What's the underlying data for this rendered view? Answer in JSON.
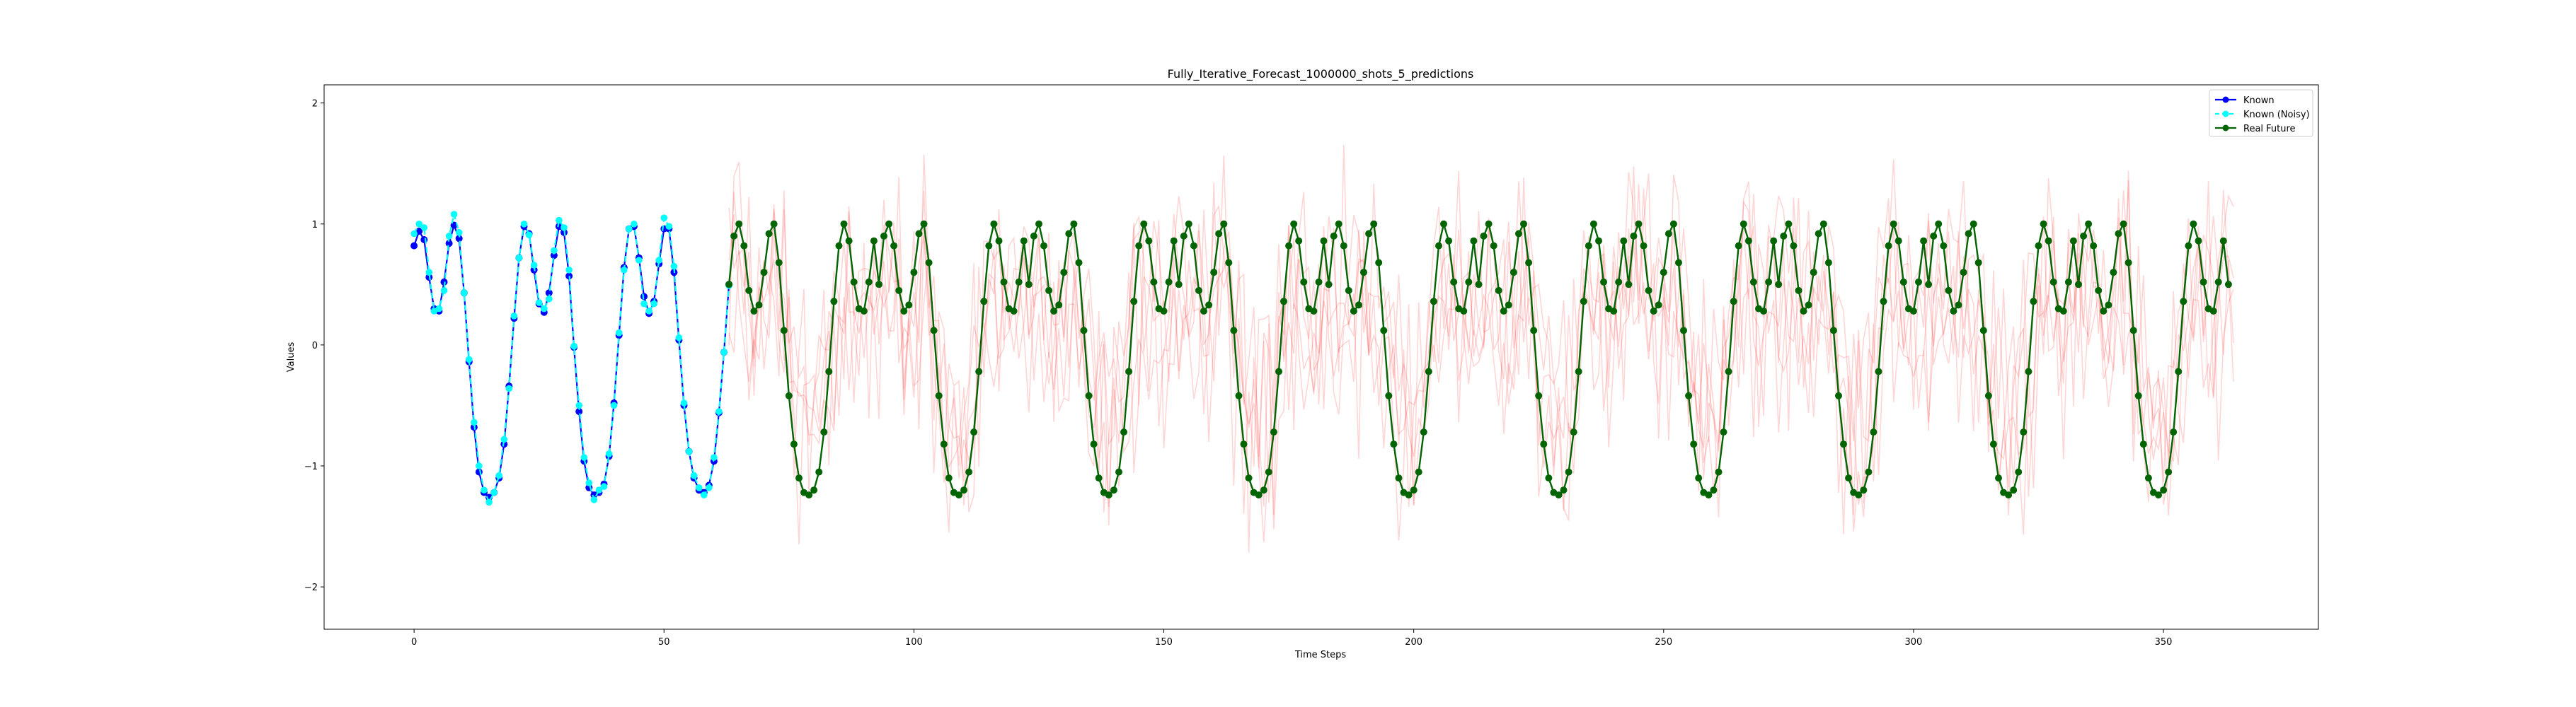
{
  "chart_data": {
    "type": "line",
    "title": "Fully_Iterative_Forecast_1000000_shots_5_predictions",
    "xlabel": "Time Steps",
    "ylabel": "Values",
    "xlim": [
      -18,
      381
    ],
    "ylim": [
      -2.35,
      2.15
    ],
    "xticks": [
      0,
      50,
      100,
      150,
      200,
      250,
      300,
      350
    ],
    "yticks": [
      -2,
      -1,
      0,
      1,
      2
    ],
    "legend_position": "top-right",
    "grid": false,
    "colors": {
      "known": "#0000ff",
      "known_noisy": "#00ffff",
      "real_future": "#006400",
      "predictions": "#ff0000"
    },
    "series": [
      {
        "name": "Known",
        "x_start": 0,
        "values": [
          0.82,
          0.94,
          0.87,
          0.56,
          0.3,
          0.28,
          0.52,
          0.84,
          0.99,
          0.88,
          0.43,
          -0.14,
          -0.68,
          -1.05,
          -1.22,
          -1.26,
          -1.22,
          -1.1,
          -0.82,
          -0.34,
          0.22,
          0.72,
          0.98,
          0.92,
          0.62,
          0.34,
          0.27,
          0.43,
          0.74,
          0.98,
          0.93,
          0.57,
          -0.02,
          -0.55,
          -0.96,
          -1.18,
          -1.24,
          -1.22,
          -1.15,
          -0.92,
          -0.48,
          0.08,
          0.64,
          0.96,
          0.98,
          0.72,
          0.4,
          0.26,
          0.36,
          0.67,
          0.96,
          0.96,
          0.6,
          0.04,
          -0.5,
          -0.88,
          -1.1,
          -1.2,
          -1.22,
          -1.16,
          -0.96,
          -0.56,
          -0.06,
          0.5
        ]
      },
      {
        "name": "Known (Noisy)",
        "x_start": 0,
        "values": [
          0.92,
          1.0,
          0.97,
          0.6,
          0.28,
          0.3,
          0.45,
          0.9,
          1.08,
          0.93,
          0.43,
          -0.12,
          -0.64,
          -1.0,
          -1.2,
          -1.3,
          -1.22,
          -1.08,
          -0.78,
          -0.36,
          0.24,
          0.72,
          1.0,
          0.91,
          0.66,
          0.35,
          0.3,
          0.38,
          0.78,
          1.03,
          0.97,
          0.62,
          -0.01,
          -0.5,
          -0.93,
          -1.14,
          -1.28,
          -1.2,
          -1.17,
          -0.9,
          -0.5,
          0.1,
          0.62,
          0.96,
          1.0,
          0.7,
          0.34,
          0.28,
          0.34,
          0.7,
          1.05,
          0.98,
          0.65,
          0.06,
          -0.48,
          -0.88,
          -1.08,
          -1.18,
          -1.24,
          -1.18,
          -0.93,
          -0.55,
          -0.06,
          0.49
        ]
      },
      {
        "name": "Real Future",
        "x_start": 63,
        "period_pattern": [
          0.5,
          0.9,
          1.0,
          0.82,
          0.45,
          0.28,
          0.33,
          0.6,
          0.92,
          1.0,
          0.68,
          0.12,
          -0.42,
          -0.82,
          -1.1,
          -1.22,
          -1.24,
          -1.2,
          -1.05,
          -0.72,
          -0.22,
          0.36,
          0.82,
          1.0,
          0.86,
          0.52,
          0.3,
          0.28,
          0.52,
          0.86
        ],
        "n_points": 301
      }
    ],
    "predictions": {
      "count": 5,
      "x_start": 63,
      "x_end": 364,
      "noise_amplitude": 0.6
    }
  }
}
